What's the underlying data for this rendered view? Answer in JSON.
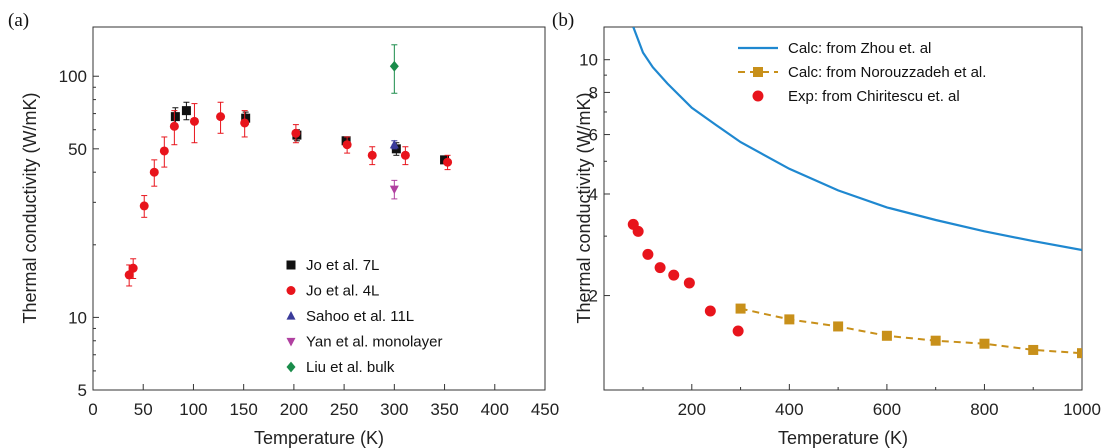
{
  "chart_data": [
    {
      "panel_label": "(a)",
      "type": "scatter",
      "xlabel": "Temperature (K)",
      "ylabel": "Thermal conductivity (W/mK)",
      "xlim": [
        0,
        450
      ],
      "ylim": [
        5,
        160
      ],
      "yscale": "log",
      "x_ticks": [
        "0",
        "50",
        "100",
        "150",
        "200",
        "250",
        "300",
        "350",
        "400",
        "450"
      ],
      "y_ticks": [
        "5",
        "10",
        "50",
        "100"
      ],
      "grid": false,
      "legend_position": "bottom-right",
      "series": [
        {
          "name": "Jo et al. 7L",
          "marker": "square",
          "color": "#111111",
          "points": [
            {
              "x": 82,
              "y": 68,
              "err": 6
            },
            {
              "x": 93,
              "y": 72,
              "err": 6
            },
            {
              "x": 152,
              "y": 67,
              "err": 4
            },
            {
              "x": 203,
              "y": 57,
              "err": 3
            },
            {
              "x": 252,
              "y": 54,
              "err": 2
            },
            {
              "x": 302,
              "y": 50,
              "err": 3
            },
            {
              "x": 350,
              "y": 45,
              "err": 1
            }
          ]
        },
        {
          "name": "Jo et al. 4L",
          "marker": "circle",
          "color": "#e8141c",
          "points": [
            {
              "x": 36,
              "y": 15,
              "err": 1.5
            },
            {
              "x": 40,
              "y": 16,
              "err": 1.5
            },
            {
              "x": 51,
              "y": 29,
              "err": 3
            },
            {
              "x": 61,
              "y": 40,
              "err": 5
            },
            {
              "x": 71,
              "y": 49,
              "err": 7
            },
            {
              "x": 81,
              "y": 62,
              "err": 10
            },
            {
              "x": 101,
              "y": 65,
              "err": 12
            },
            {
              "x": 127,
              "y": 68,
              "err": 10
            },
            {
              "x": 151,
              "y": 64,
              "err": 8
            },
            {
              "x": 202,
              "y": 58,
              "err": 5
            },
            {
              "x": 253,
              "y": 52,
              "err": 4
            },
            {
              "x": 278,
              "y": 47,
              "err": 4
            },
            {
              "x": 311,
              "y": 47,
              "err": 4
            },
            {
              "x": 353,
              "y": 44,
              "err": 3
            }
          ]
        },
        {
          "name": "Sahoo et al. 11L",
          "marker": "triangle-up",
          "color": "#3a3b9a",
          "points": [
            {
              "x": 300,
              "y": 52,
              "err": 2
            }
          ]
        },
        {
          "name": "Yan et al. monolayer",
          "marker": "triangle-down",
          "color": "#b040a0",
          "points": [
            {
              "x": 300,
              "y": 34,
              "err": 3
            }
          ]
        },
        {
          "name": "Liu et al. bulk",
          "marker": "diamond",
          "color": "#1a8c4a",
          "points": [
            {
              "x": 300,
              "y": 110,
              "err": 25
            }
          ]
        }
      ]
    },
    {
      "panel_label": "(b)",
      "type": "line",
      "xlabel": "Temperature (K)",
      "ylabel": "Thermal conductivity (W/mK)",
      "xlim": [
        20,
        1000
      ],
      "ylim": [
        1.05,
        12.5
      ],
      "yscale": "log",
      "x_ticks": [
        "200",
        "400",
        "600",
        "800",
        "1000"
      ],
      "y_ticks": [
        "2",
        "4",
        "6",
        "8",
        "10"
      ],
      "grid": false,
      "legend_position": "top-right",
      "series": [
        {
          "name": "Calc: from Zhou et. al",
          "style": "solid-line",
          "color": "#1f88d0",
          "points": [
            {
              "x": 80,
              "y": 12.5
            },
            {
              "x": 100,
              "y": 10.5
            },
            {
              "x": 120,
              "y": 9.5
            },
            {
              "x": 150,
              "y": 8.5
            },
            {
              "x": 200,
              "y": 7.2
            },
            {
              "x": 250,
              "y": 6.4
            },
            {
              "x": 300,
              "y": 5.7
            },
            {
              "x": 400,
              "y": 4.75
            },
            {
              "x": 500,
              "y": 4.1
            },
            {
              "x": 600,
              "y": 3.65
            },
            {
              "x": 700,
              "y": 3.35
            },
            {
              "x": 800,
              "y": 3.1
            },
            {
              "x": 900,
              "y": 2.9
            },
            {
              "x": 1000,
              "y": 2.73
            }
          ]
        },
        {
          "name": "Calc: from Norouzzadeh et al.",
          "style": "dashed-line-square",
          "color": "#c8901a",
          "points": [
            {
              "x": 300,
              "y": 1.83
            },
            {
              "x": 400,
              "y": 1.7
            },
            {
              "x": 500,
              "y": 1.62
            },
            {
              "x": 600,
              "y": 1.52
            },
            {
              "x": 700,
              "y": 1.47
            },
            {
              "x": 800,
              "y": 1.44
            },
            {
              "x": 900,
              "y": 1.38
            },
            {
              "x": 1000,
              "y": 1.35
            }
          ]
        },
        {
          "name": "Exp: from Chiritescu et. al",
          "style": "circle",
          "color": "#e8141c",
          "points": [
            {
              "x": 80,
              "y": 3.25
            },
            {
              "x": 90,
              "y": 3.1
            },
            {
              "x": 110,
              "y": 2.65
            },
            {
              "x": 135,
              "y": 2.42
            },
            {
              "x": 163,
              "y": 2.3
            },
            {
              "x": 195,
              "y": 2.18
            },
            {
              "x": 238,
              "y": 1.8
            },
            {
              "x": 295,
              "y": 1.57
            }
          ]
        }
      ]
    }
  ]
}
